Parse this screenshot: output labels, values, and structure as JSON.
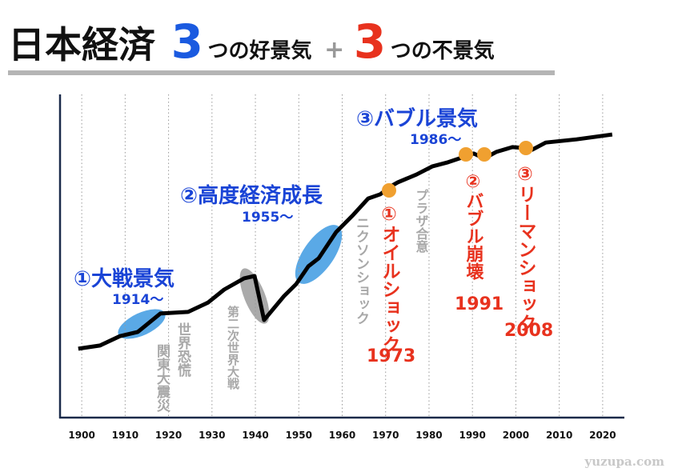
{
  "chart_data": {
    "type": "line",
    "title": [
      "日本経済",
      "3",
      "つの好景気",
      "+",
      "3",
      "つの不景気"
    ],
    "x": [
      1899.2,
      1904.2,
      1908.8,
      1912.9,
      1918.1,
      1924.5,
      1929.1,
      1932.8,
      1937.4,
      1939.8,
      1942.0,
      1946.6,
      1949.4,
      1952.2,
      1954.6,
      1958.6,
      1962.3,
      1966.0,
      1968.8,
      1971.5,
      1972.8,
      1977.1,
      1980.7,
      1984.4,
      1988.1,
      1990.3,
      1992.7,
      1995.5,
      1999.2,
      2002.3,
      2003.8,
      2006.9,
      2014.0,
      2022.2
    ],
    "values": [
      21.3,
      22.3,
      25.2,
      26.5,
      32.2,
      32.7,
      35.6,
      39.6,
      43.1,
      43.8,
      30.2,
      37.6,
      41.3,
      46.8,
      49.3,
      57.4,
      62.4,
      67.8,
      69.1,
      71.8,
      72.8,
      75.2,
      77.7,
      79.0,
      80.7,
      81.7,
      80.2,
      82.2,
      83.7,
      83.4,
      82.9,
      85.1,
      86.1,
      87.6
    ],
    "color": "#000000",
    "xlim": [
      1895,
      2025
    ],
    "ylim": [
      0,
      100
    ],
    "xticks": [
      1900,
      1910,
      1920,
      1930,
      1940,
      1950,
      1960,
      1970,
      1980,
      1990,
      2000,
      2010,
      2020
    ],
    "grid": true,
    "annotations": [
      {
        "text": "①大戦景気",
        "color": "#1a44d6"
      },
      {
        "text": "1914〜",
        "color": "#1a44d6"
      },
      {
        "text": "②高度経済成長",
        "color": "#1a44d6"
      },
      {
        "text": "1955〜",
        "color": "#1a44d6"
      },
      {
        "text": "③バブル景気",
        "color": "#1a44d6"
      },
      {
        "text": "1986〜",
        "color": "#1a44d6"
      },
      {
        "text": "世界恐慌",
        "color": "#a8a8a8",
        "vertical": true
      },
      {
        "text": "関東大震災",
        "color": "#a8a8a8",
        "vertical": true
      },
      {
        "text": "第二次世界大戦",
        "color": "#a8a8a8",
        "vertical": true
      },
      {
        "text": "ニクソンショック",
        "color": "#a8a8a8",
        "vertical": true
      },
      {
        "text": "プラザ合意",
        "color": "#a8a8a8",
        "vertical": true
      },
      {
        "text": "①オイルショック",
        "color": "#e8321e",
        "vertical": true
      },
      {
        "text": "1973",
        "color": "#e8321e"
      },
      {
        "text": "②バブル崩壊",
        "color": "#e8321e",
        "vertical": true
      },
      {
        "text": "1991",
        "color": "#e8321e"
      },
      {
        "text": "③リーマンショック",
        "color": "#e8321e",
        "vertical": true
      },
      {
        "text": "2008",
        "color": "#e8321e"
      }
    ],
    "footer": "yuzupa.com"
  }
}
